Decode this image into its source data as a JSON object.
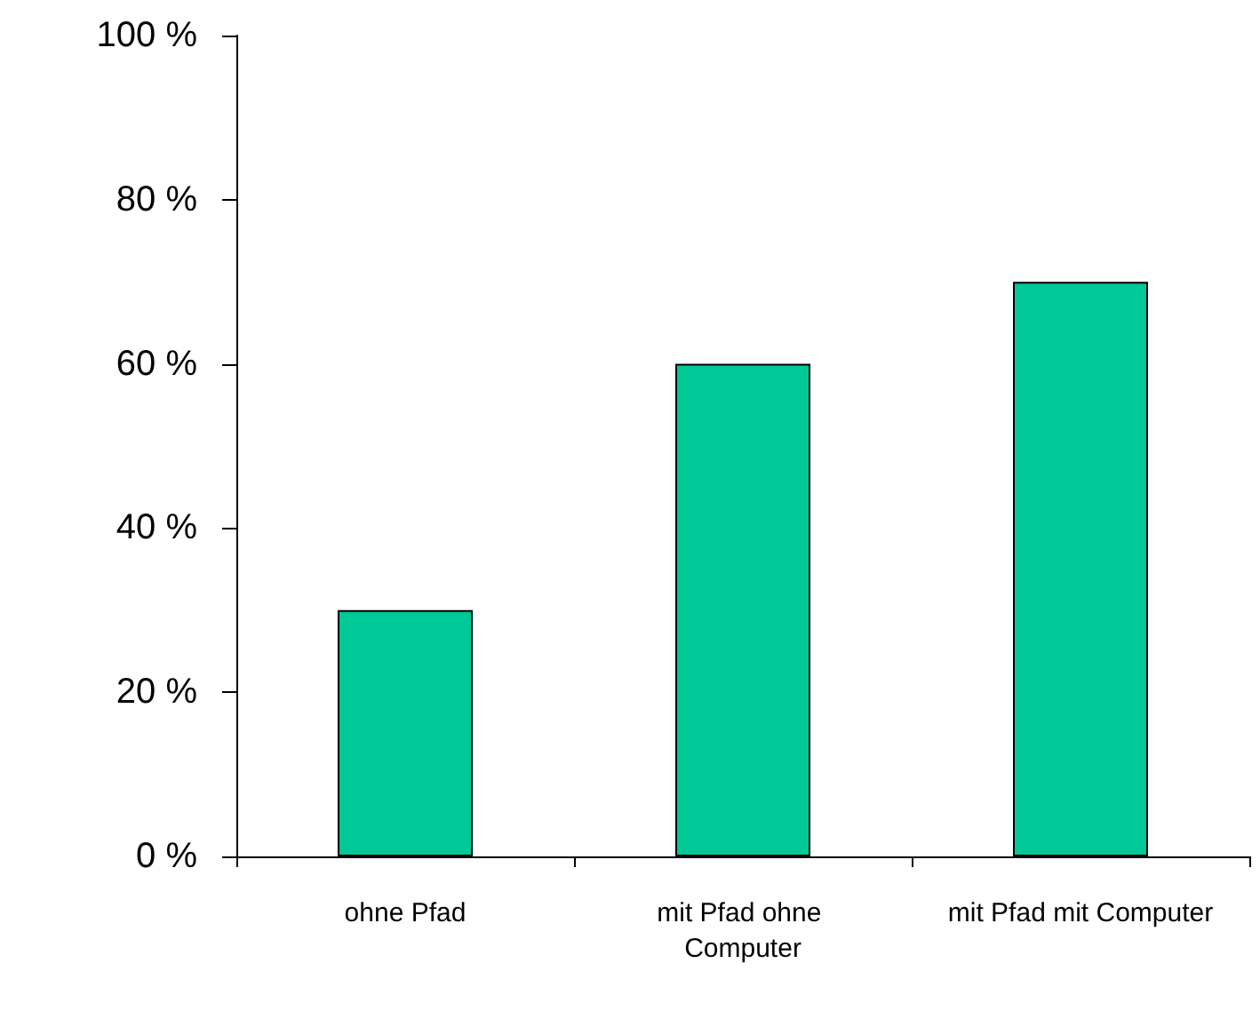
{
  "chart_data": {
    "type": "bar",
    "categories": [
      "ohne Pfad",
      "mit Pfad ohne Computer",
      "mit Pfad mit Computer"
    ],
    "values": [
      30,
      60,
      70
    ],
    "color": "#00c896",
    "ylim": [
      0,
      100
    ],
    "yticks": [
      {
        "value": 0,
        "label": "0 %"
      },
      {
        "value": 20,
        "label": "20 %"
      },
      {
        "value": 40,
        "label": "40 %"
      },
      {
        "value": 60,
        "label": "60 %"
      },
      {
        "value": 80,
        "label": "80 %"
      },
      {
        "value": 100,
        "label": "100 %"
      }
    ],
    "grid": false
  }
}
